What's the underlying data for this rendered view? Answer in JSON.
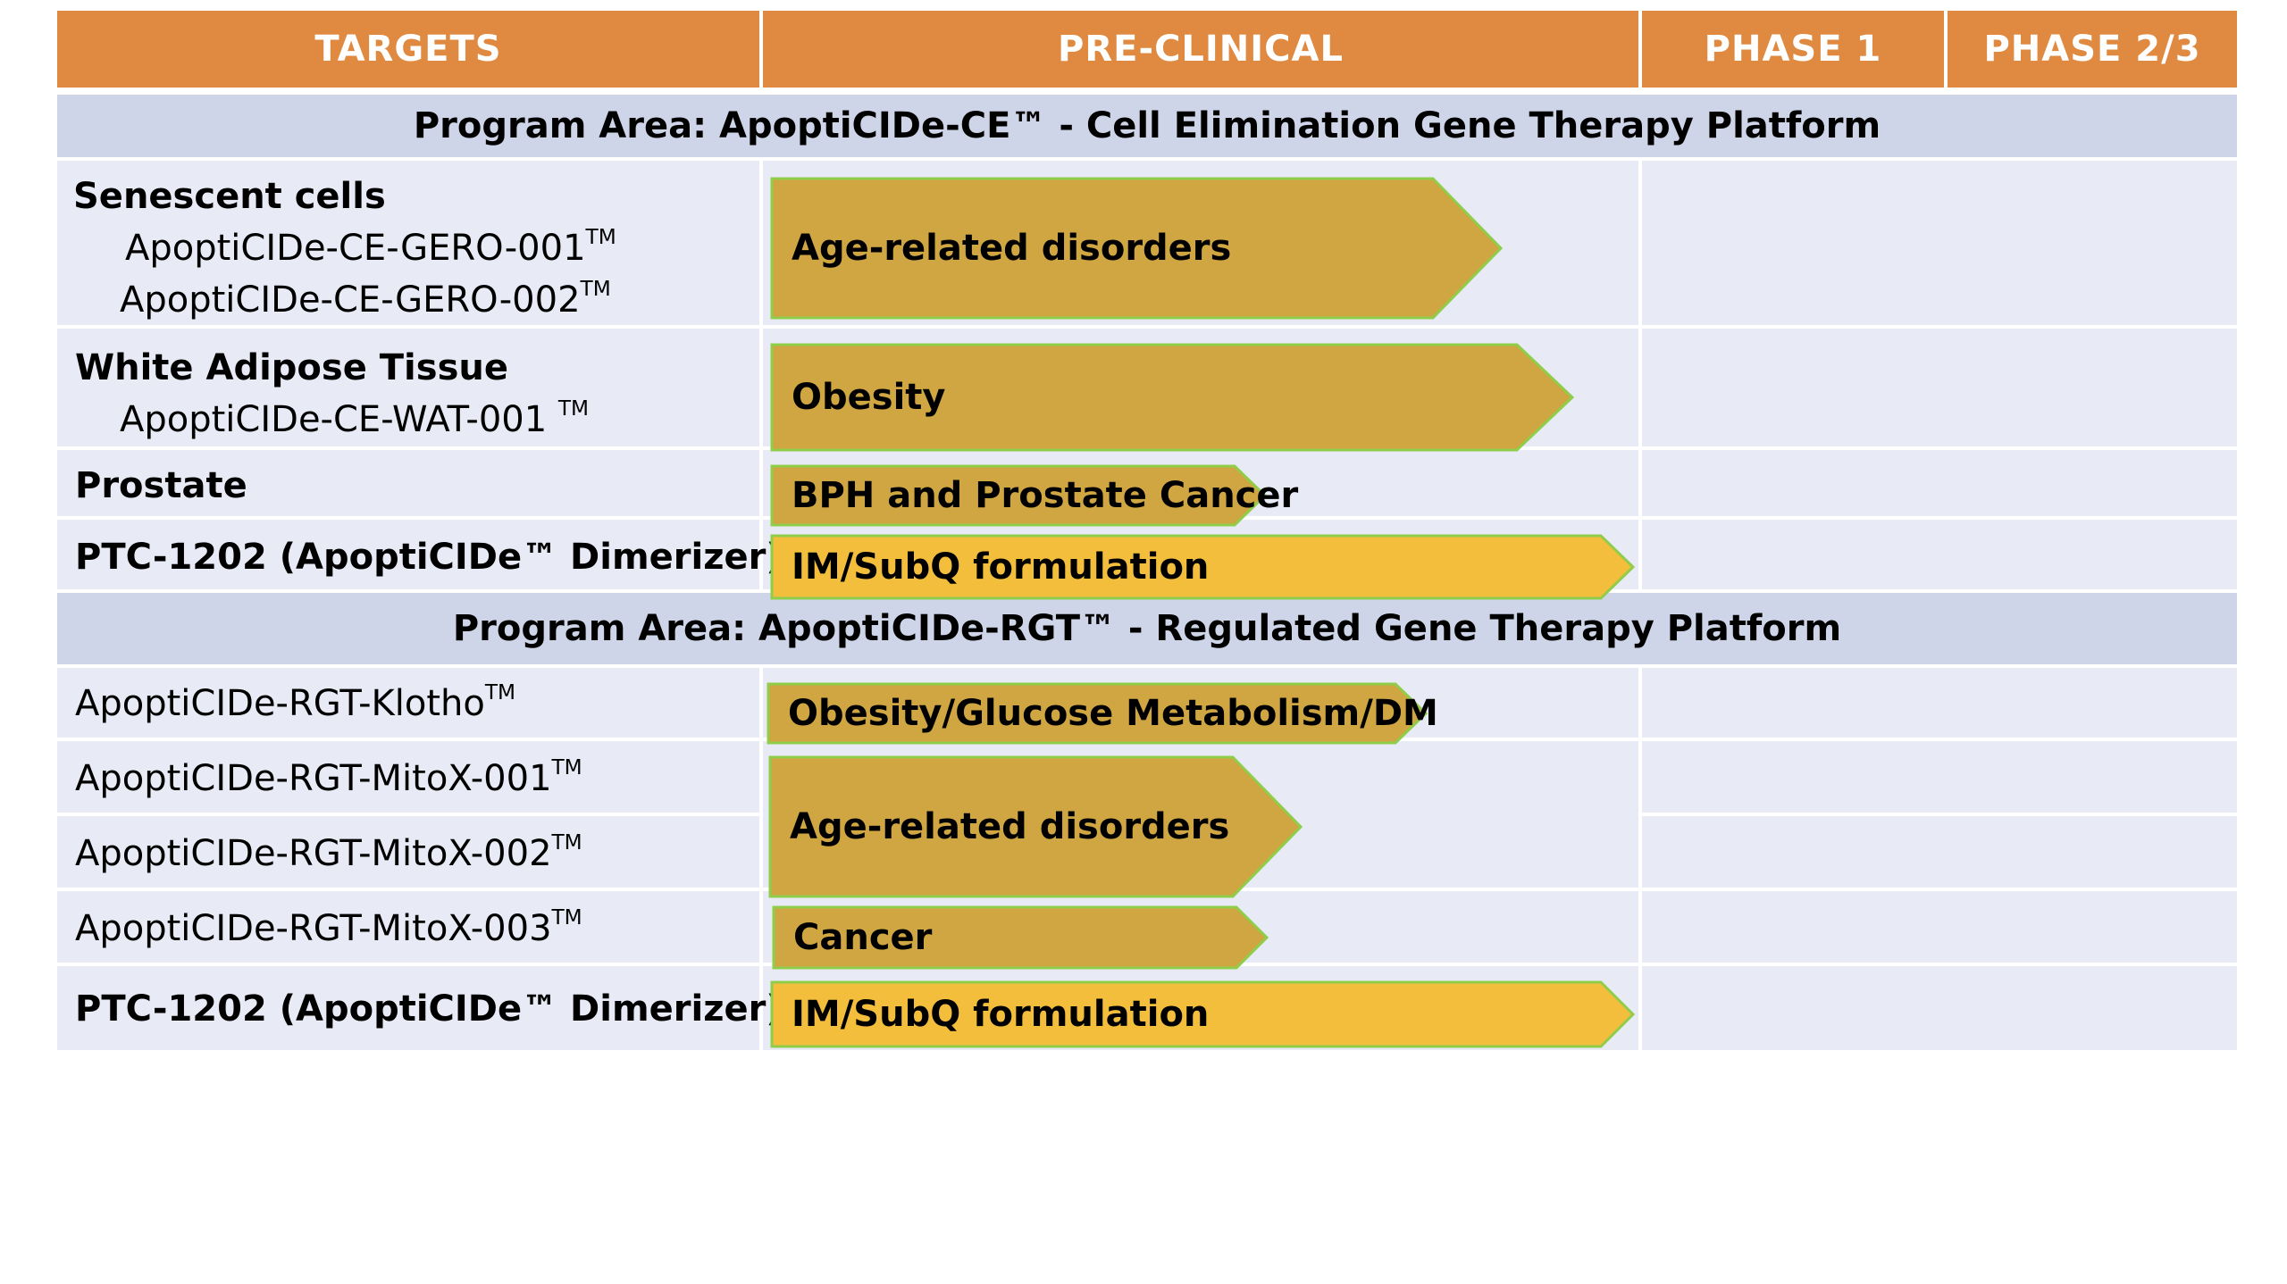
{
  "header": {
    "targets": "TARGETS",
    "preclinical": "PRE-CLINICAL",
    "phase1": "PHASE 1",
    "phase23": "PHASE 2/3"
  },
  "colors": {
    "header": "#df8a40",
    "band": "#cfd5e8",
    "row": "#e8ebf5",
    "arrow_dark": "#cfa641",
    "arrow_light": "#f2be3c",
    "arrow_outline": "#8fcd4a"
  },
  "sections": [
    {
      "title": "Program Area: ApoptiCIDe-CE™ - Cell Elimination Gene Therapy Platform",
      "rows": [
        {
          "heading": "Senescent cells",
          "items": [
            "ApoptiCIDe-CE-GERO-001",
            "ApoptiCIDe-CE-GERO-002"
          ],
          "tm": "TM",
          "indication": "Age-related disorders"
        },
        {
          "heading": "White Adipose Tissue",
          "items": [
            "ApoptiCIDe-CE-WAT-001"
          ],
          "tm": "TM",
          "indication": "Obesity"
        },
        {
          "heading": "Prostate",
          "indication": "BPH and Prostate Cancer"
        },
        {
          "heading": "PTC-1202 (ApoptiCIDe™ Dimerizer)",
          "indication": "IM/SubQ formulation"
        }
      ]
    },
    {
      "title": "Program Area: ApoptiCIDe-RGT™ - Regulated Gene Therapy Platform",
      "rows": [
        {
          "items": [
            "ApoptiCIDe-RGT-Klotho"
          ],
          "tm": "TM",
          "indication": "Obesity/Glucose Metabolism/DM"
        },
        {
          "items": [
            "ApoptiCIDe-RGT-MitoX-001"
          ],
          "tm": "TM"
        },
        {
          "items": [
            "ApoptiCIDe-RGT-MitoX-002"
          ],
          "tm": "TM",
          "indication": "Age-related disorders"
        },
        {
          "items": [
            "ApoptiCIDe-RGT-MitoX-003"
          ],
          "tm": "TM",
          "indication": "Cancer"
        },
        {
          "heading": "PTC-1202 (ApoptiCIDe™ Dimerizer)",
          "indication": "IM/SubQ formulation"
        }
      ]
    }
  ]
}
